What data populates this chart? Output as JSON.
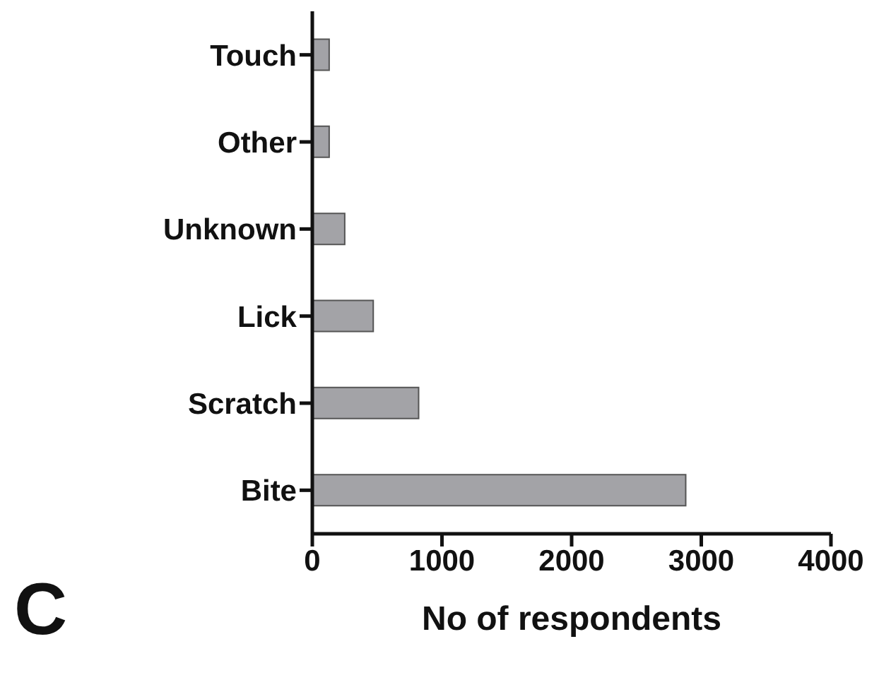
{
  "chart_data": {
    "type": "bar",
    "orientation": "horizontal",
    "categories": [
      "Touch",
      "Other",
      "Unknown",
      "Lick",
      "Scratch",
      "Bite"
    ],
    "values": [
      130,
      130,
      250,
      470,
      820,
      2880
    ],
    "color": "#a3a3a7",
    "xlim": [
      0,
      4000
    ],
    "xticks": [
      0,
      1000,
      2000,
      3000,
      4000
    ],
    "xlabel": "No of respondents",
    "annotations": [
      "C"
    ],
    "grid": false,
    "legend": false
  }
}
